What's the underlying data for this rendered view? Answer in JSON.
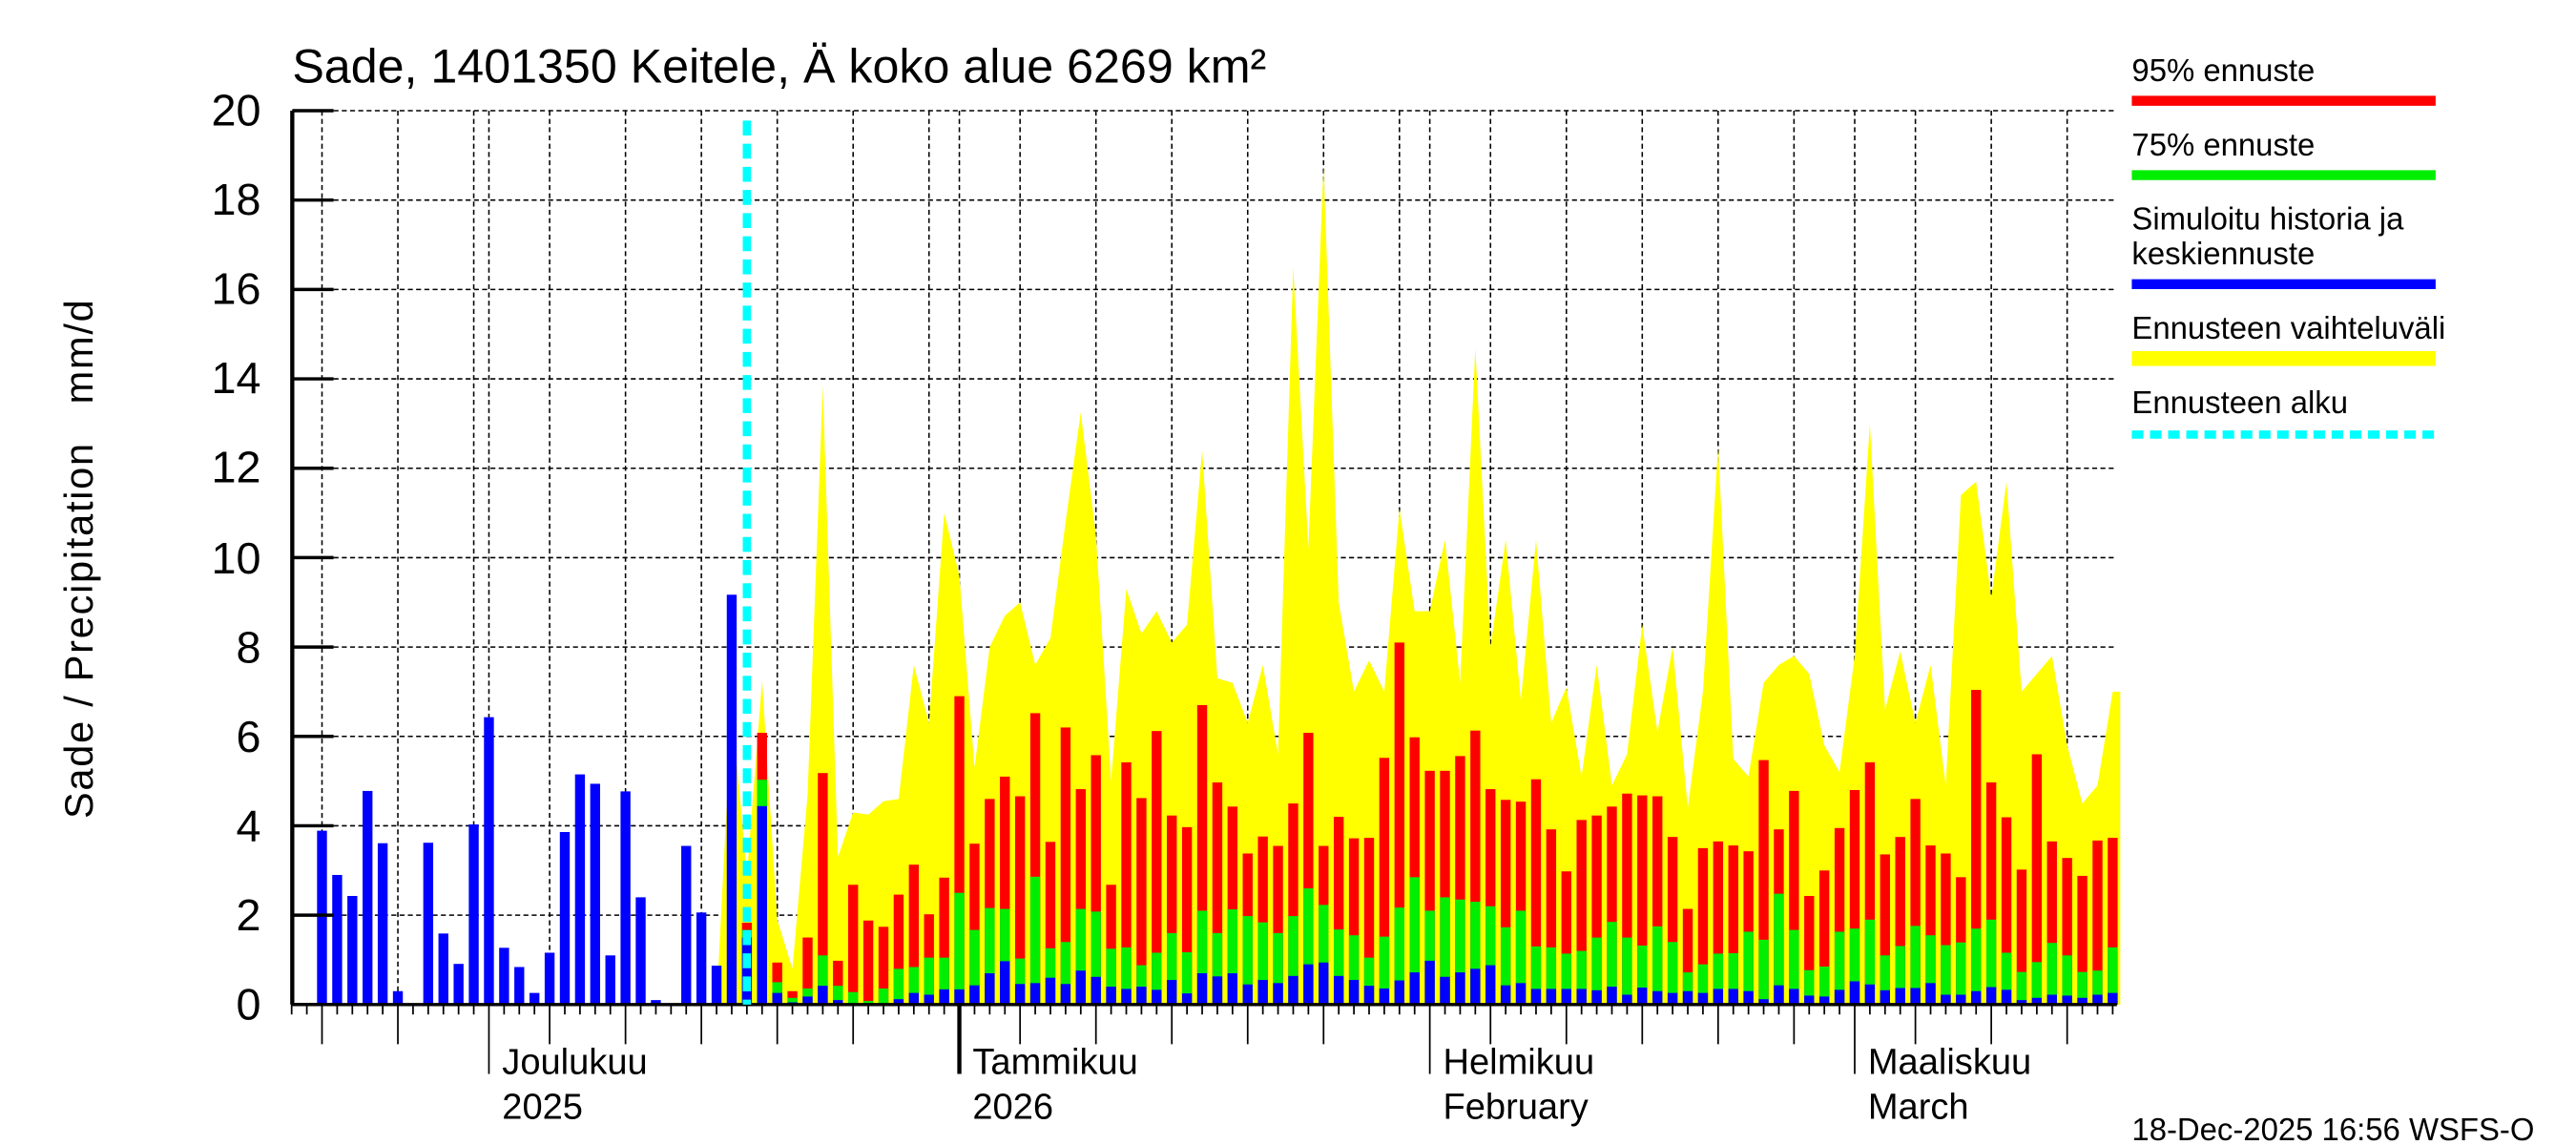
{
  "chart_data": {
    "type": "bar",
    "title": "Sade, 1401350 Keitele, Ä koko alue 6269 km²",
    "ylabel": "Sade / Precipitation   mm/d",
    "xlabel": "",
    "ylim": [
      0,
      20
    ],
    "yticks": [
      "0",
      "2",
      "4",
      "6",
      "8",
      "10",
      "12",
      "14",
      "16",
      "18",
      "20"
    ],
    "grid": true,
    "x_range": [
      "2025-11-18",
      "2026-03-18"
    ],
    "month_labels": [
      {
        "line1": "Joulukuu",
        "line2": "2025",
        "date": "2025-12-01"
      },
      {
        "line1": "Tammikuu",
        "line2": "2026",
        "date": "2026-01-01"
      },
      {
        "line1": "Helmikuu",
        "line2": "February",
        "date": "2026-02-01"
      },
      {
        "line1": "Maaliskuu",
        "line2": "March",
        "date": "2026-03-01"
      }
    ],
    "forecast_start": "2025-12-18",
    "history": {
      "name": "Simuloitu historia ja keskiennuste",
      "start": "2025-11-20",
      "values": [
        3.89,
        2.9,
        2.43,
        4.78,
        3.61,
        0.3,
        0,
        3.62,
        1.59,
        0.91,
        4.03,
        6.43,
        1.27,
        0.84,
        0.26,
        1.16,
        3.86,
        5.15,
        4.94,
        1.1,
        4.77,
        2.4,
        0.1,
        0,
        3.55,
        2.06,
        0.87,
        9.17
      ]
    },
    "forecast": {
      "start": "2025-12-18",
      "series": [
        {
          "name": "95% ennuste",
          "color": "#ff0000",
          "values": [
            1.83,
            6.08,
            0.94,
            0.3,
            1.5,
            5.18,
            0.98,
            2.68,
            1.88,
            1.74,
            2.46,
            3.13,
            2.02,
            2.84,
            6.9,
            3.6,
            4.6,
            5.1,
            4.66,
            6.52,
            3.64,
            6.2,
            4.82,
            5.58,
            2.68,
            5.42,
            4.62,
            6.12,
            4.23,
            3.97,
            6.7,
            4.97,
            4.43,
            3.38,
            3.76,
            3.55,
            4.5,
            6.08,
            3.55,
            4.2,
            3.72,
            3.73,
            5.52,
            8.1,
            5.98,
            5.23,
            5.23,
            5.56,
            6.13,
            4.82,
            4.58,
            4.54,
            5.04,
            3.92,
            2.98,
            4.13,
            4.23,
            4.43,
            4.72,
            4.68,
            4.66,
            3.75,
            2.14,
            3.5,
            3.65,
            3.56,
            3.43,
            5.47,
            3.92,
            4.78,
            2.43,
            3.0,
            3.95,
            4.8,
            5.42,
            3.36,
            3.75,
            4.6,
            3.56,
            3.38,
            2.85,
            7.04,
            4.97,
            4.19,
            3.02,
            5.6,
            3.65,
            3.28,
            2.88,
            3.67,
            3.73
          ]
        },
        {
          "name": "75% ennuste",
          "color": "#00ee00",
          "values": [
            1.67,
            5.03,
            0.5,
            0.15,
            0.36,
            1.1,
            0.42,
            0.28,
            0.08,
            0.36,
            0.8,
            0.84,
            1.05,
            1.05,
            2.5,
            1.67,
            2.16,
            2.14,
            1.03,
            2.86,
            1.26,
            1.4,
            2.14,
            2.08,
            1.25,
            1.28,
            0.88,
            1.16,
            1.6,
            1.17,
            2.1,
            1.6,
            2.13,
            1.98,
            1.84,
            1.6,
            1.98,
            2.6,
            2.23,
            1.68,
            1.55,
            1.05,
            1.52,
            2.17,
            2.85,
            2.1,
            2.4,
            2.35,
            2.3,
            2.2,
            1.73,
            2.1,
            1.3,
            1.28,
            1.14,
            1.2,
            1.5,
            1.85,
            1.5,
            1.32,
            1.75,
            1.4,
            0.72,
            0.9,
            1.14,
            1.15,
            1.63,
            1.45,
            2.48,
            1.67,
            0.77,
            0.85,
            1.63,
            1.7,
            1.9,
            1.1,
            1.31,
            1.76,
            1.55,
            1.33,
            1.39,
            1.7,
            1.9,
            1.16,
            0.73,
            0.95,
            1.38,
            1.1,
            0.73,
            0.76,
            1.28
          ]
        },
        {
          "name": "Simuloitu historia ja keskiennuste",
          "color": "#0000ff",
          "values": [
            1.5,
            4.44,
            0.26,
            0.05,
            0.18,
            0.42,
            0.1,
            0.02,
            0,
            0.02,
            0.12,
            0.26,
            0.22,
            0.34,
            0.34,
            0.43,
            0.7,
            0.97,
            0.46,
            0.48,
            0.6,
            0.46,
            0.76,
            0.62,
            0.4,
            0.35,
            0.4,
            0.33,
            0.55,
            0.25,
            0.7,
            0.63,
            0.7,
            0.45,
            0.55,
            0.48,
            0.64,
            0.9,
            0.94,
            0.64,
            0.55,
            0.42,
            0.36,
            0.54,
            0.72,
            0.98,
            0.62,
            0.72,
            0.8,
            0.88,
            0.43,
            0.48,
            0.35,
            0.35,
            0.35,
            0.35,
            0.32,
            0.4,
            0.22,
            0.38,
            0.3,
            0.26,
            0.3,
            0.26,
            0.35,
            0.35,
            0.3,
            0.12,
            0.43,
            0.35,
            0.2,
            0.18,
            0.33,
            0.52,
            0.45,
            0.32,
            0.37,
            0.37,
            0.48,
            0.22,
            0.22,
            0.3,
            0.39,
            0.33,
            0.1,
            0.15,
            0.22,
            0.2,
            0.15,
            0.22,
            0.26
          ]
        }
      ],
      "envelope": {
        "name": "Ennusteen vaihteluväli",
        "color": "#ffff00",
        "start": "2025-12-16",
        "values": [
          0,
          6.7,
          2.9,
          7.25,
          1.9,
          0.8,
          4.7,
          13.85,
          3.3,
          4.3,
          4.25,
          4.55,
          4.6,
          7.6,
          6.3,
          11.0,
          9.6,
          5.3,
          8.0,
          8.7,
          9.0,
          7.6,
          8.2,
          10.8,
          13.25,
          10.5,
          5.0,
          9.3,
          8.3,
          8.8,
          8.1,
          8.5,
          12.4,
          7.3,
          7.2,
          6.3,
          7.6,
          5.6,
          16.5,
          10.2,
          18.8,
          9.0,
          7.0,
          7.7,
          7.0,
          11.1,
          8.8,
          8.8,
          10.4,
          7.2,
          14.7,
          8.0,
          10.4,
          6.8,
          10.4,
          6.3,
          7.1,
          5.1,
          7.6,
          4.9,
          5.6,
          8.5,
          6.1,
          8.0,
          4.4,
          7.0,
          12.5,
          5.5,
          5.1,
          7.2,
          7.6,
          7.8,
          7.4,
          5.8,
          5.2,
          7.8,
          13.0,
          6.6,
          7.9,
          6.3,
          7.6,
          4.9,
          11.4,
          11.7,
          9.1,
          11.7,
          7.0,
          7.4,
          7.8,
          5.8,
          4.5,
          4.9,
          7.0
        ]
      }
    },
    "legend": {
      "placement": "right",
      "items": [
        {
          "label": "95% ennuste",
          "color": "#ff0000",
          "style": "solid"
        },
        {
          "label": "75% ennuste",
          "color": "#00ee00",
          "style": "solid"
        },
        {
          "label": "Simuloitu historia ja",
          "label2": "keskiennuste",
          "color": "#0000ff",
          "style": "solid"
        },
        {
          "label": "Ennusteen vaihteluväli",
          "color": "#ffff00",
          "style": "solid"
        },
        {
          "label": "Ennusteen alku",
          "color": "#00ffff",
          "style": "dotted"
        }
      ]
    },
    "footer": "18-Dec-2025 16:56 WSFS-O"
  }
}
